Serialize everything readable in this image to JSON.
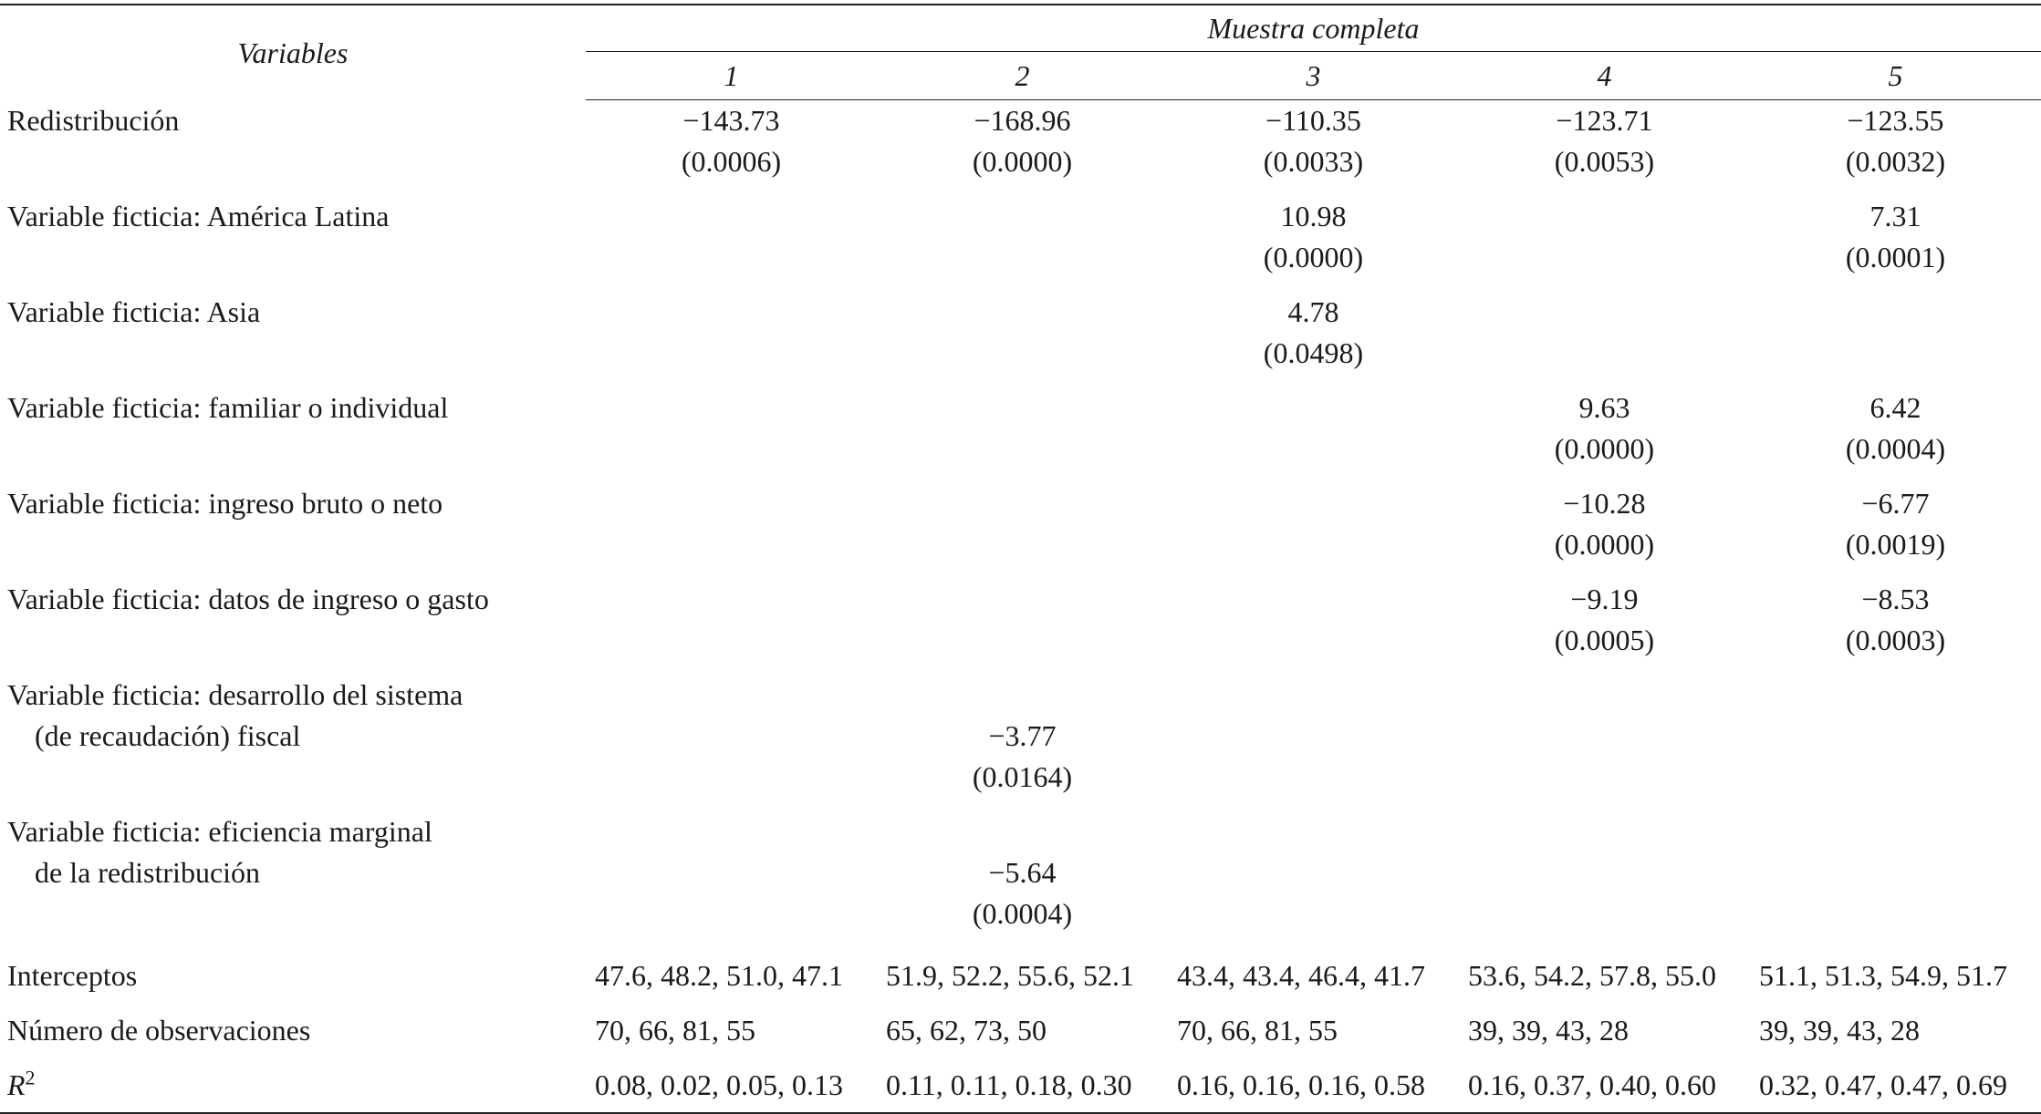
{
  "header": {
    "variables_label": "Variables",
    "group_label": "Muestra completa",
    "columns": [
      "1",
      "2",
      "3",
      "4",
      "5"
    ]
  },
  "rows": [
    {
      "label": [
        "Redistribución"
      ],
      "cells": [
        {
          "coef": "−143.73",
          "p": "(0.0006)"
        },
        {
          "coef": "−168.96",
          "p": "(0.0000)"
        },
        {
          "coef": "−110.35",
          "p": "(0.0033)"
        },
        {
          "coef": "−123.71",
          "p": "(0.0053)"
        },
        {
          "coef": "−123.55",
          "p": "(0.0032)"
        }
      ]
    },
    {
      "label": [
        "Variable ficticia: América Latina"
      ],
      "cells": [
        {
          "coef": "",
          "p": ""
        },
        {
          "coef": "",
          "p": ""
        },
        {
          "coef": "10.98",
          "p": "(0.0000)"
        },
        {
          "coef": "",
          "p": ""
        },
        {
          "coef": "7.31",
          "p": "(0.0001)"
        }
      ]
    },
    {
      "label": [
        "Variable ficticia: Asia"
      ],
      "cells": [
        {
          "coef": "",
          "p": ""
        },
        {
          "coef": "",
          "p": ""
        },
        {
          "coef": "4.78",
          "p": "(0.0498)"
        },
        {
          "coef": "",
          "p": ""
        },
        {
          "coef": "",
          "p": ""
        }
      ]
    },
    {
      "label": [
        "Variable ficticia: familiar o individual"
      ],
      "cells": [
        {
          "coef": "",
          "p": ""
        },
        {
          "coef": "",
          "p": ""
        },
        {
          "coef": "",
          "p": ""
        },
        {
          "coef": "9.63",
          "p": "(0.0000)"
        },
        {
          "coef": "6.42",
          "p": "(0.0004)"
        }
      ]
    },
    {
      "label": [
        "Variable ficticia: ingreso bruto o neto"
      ],
      "cells": [
        {
          "coef": "",
          "p": ""
        },
        {
          "coef": "",
          "p": ""
        },
        {
          "coef": "",
          "p": ""
        },
        {
          "coef": "−10.28",
          "p": "(0.0000)"
        },
        {
          "coef": "−6.77",
          "p": "(0.0019)"
        }
      ]
    },
    {
      "label": [
        "Variable ficticia: datos de ingreso o gasto"
      ],
      "cells": [
        {
          "coef": "",
          "p": ""
        },
        {
          "coef": "",
          "p": ""
        },
        {
          "coef": "",
          "p": ""
        },
        {
          "coef": "−9.19",
          "p": "(0.0005)"
        },
        {
          "coef": "−8.53",
          "p": "(0.0003)"
        }
      ]
    },
    {
      "label": [
        "Variable ficticia: desarrollo del sistema",
        "(de recaudación) fiscal"
      ],
      "cells": [
        {
          "coef": "",
          "p": ""
        },
        {
          "coef": "−3.77",
          "p": "(0.0164)"
        },
        {
          "coef": "",
          "p": ""
        },
        {
          "coef": "",
          "p": ""
        },
        {
          "coef": "",
          "p": ""
        }
      ]
    },
    {
      "label": [
        "Variable ficticia: eficiencia marginal",
        "de la redistribución"
      ],
      "cells": [
        {
          "coef": "",
          "p": ""
        },
        {
          "coef": "−5.64",
          "p": "(0.0004)"
        },
        {
          "coef": "",
          "p": ""
        },
        {
          "coef": "",
          "p": ""
        },
        {
          "coef": "",
          "p": ""
        }
      ]
    }
  ],
  "summary": [
    {
      "label": "Interceptos",
      "values": [
        "47.6, 48.2, 51.0, 47.1",
        "51.9, 52.2, 55.6, 52.1",
        "43.4, 43.4, 46.4, 41.7",
        "53.6, 54.2, 57.8, 55.0",
        "51.1, 51.3, 54.9, 51.7"
      ]
    },
    {
      "label": "Número de observaciones",
      "values": [
        "70, 66, 81, 55",
        "65, 62, 73, 50",
        "70, 66, 81, 55",
        "39, 39, 43, 28",
        "39, 39, 43, 28"
      ]
    },
    {
      "label": "R",
      "label_sup": "2",
      "values": [
        "0.08, 0.02, 0.05, 0.13",
        "0.11, 0.11, 0.18, 0.30",
        "0.16, 0.16, 0.16, 0.58",
        "0.16, 0.37, 0.40, 0.60",
        "0.32, 0.47, 0.47, 0.69"
      ]
    }
  ]
}
